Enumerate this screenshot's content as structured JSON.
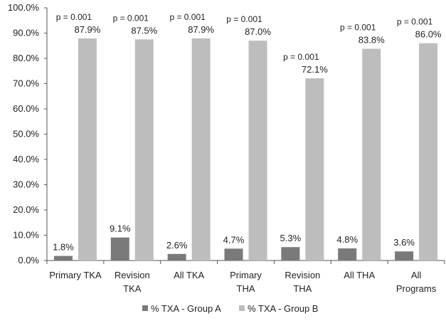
{
  "chart_data": {
    "type": "bar",
    "categories": [
      [
        "Primary TKA"
      ],
      [
        "Revision",
        "TKA"
      ],
      [
        "All TKA"
      ],
      [
        "Primary",
        "THA"
      ],
      [
        "Revision",
        "THA"
      ],
      [
        "All THA"
      ],
      [
        "All",
        "Programs"
      ]
    ],
    "series": [
      {
        "name": "% TXA - Group A",
        "color": "#7a7a7a",
        "values": [
          1.8,
          9.1,
          2.6,
          4.7,
          5.3,
          4.8,
          3.6
        ],
        "labels": [
          "1.8%",
          "9.1%",
          "2.6%",
          "4.7%",
          "5.3%",
          "4.8%",
          "3.6%"
        ]
      },
      {
        "name": "% TXA - Group B",
        "color": "#bdbdbd",
        "values": [
          87.9,
          87.5,
          87.9,
          87.0,
          72.1,
          83.8,
          86.0
        ],
        "labels": [
          "87.9%",
          "87.5%",
          "87.9%",
          "87.0%",
          "72.1%",
          "83.8%",
          "86.0%"
        ]
      }
    ],
    "annotations": [
      "p = 0.001",
      "p = 0.001",
      "p = 0.001",
      "p = 0.001",
      "p = 0.001",
      "p = 0.001",
      "p = 0.001"
    ],
    "ylim": [
      0,
      100
    ],
    "yticks": [
      "0.0%",
      "10.0%",
      "20.0%",
      "30.0%",
      "40.0%",
      "50.0%",
      "60.0%",
      "70.0%",
      "80.0%",
      "90.0%",
      "100.0%"
    ],
    "grid": false,
    "legend": "bottom",
    "title": "",
    "xlabel": "",
    "ylabel": ""
  }
}
